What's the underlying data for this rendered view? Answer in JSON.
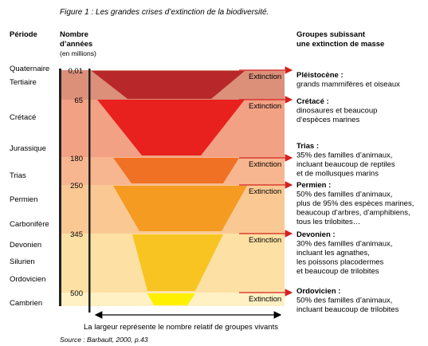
{
  "title": "Figure 1 : Les grandes crises d’extinction de la biodiversité.",
  "headers": {
    "period": "Période",
    "years": [
      "Nombre",
      "d’années"
    ],
    "years_unit": "(en millions)",
    "groups": [
      "Groupes subissant",
      "une extinction de masse"
    ]
  },
  "periods": [
    "Quaternaire",
    "Tertiaire",
    "Crétacé",
    "Jurassique",
    "Trias",
    "Permien",
    "Carbonifère",
    "Devonien",
    "Silurien",
    "Ordovicien",
    "Cambrien"
  ],
  "crises": [
    {
      "years": "0,01",
      "extinction": "Extinction",
      "group": "Pléistocène :",
      "description": [
        "grands mammifères et oiseaux"
      ]
    },
    {
      "years": "65",
      "extinction": "Extinction",
      "group": "Crétacé :",
      "description": [
        "dinosaures et beaucoup",
        "d’espèces marines"
      ]
    },
    {
      "years": "180",
      "extinction": "Extinction",
      "group": "Trias :",
      "description": [
        "35% des familles d’animaux,",
        "incluant beaucoup de reptiles",
        "et de mollusques marins"
      ]
    },
    {
      "years": "250",
      "extinction": "Extinction",
      "group": "Permien :",
      "description": [
        "50% des familles d’animaux,",
        "plus de 95% des espèces marines,",
        "beaucoup d’arbres, d’amphibiens,",
        "tous les trilobites…"
      ]
    },
    {
      "years": "345",
      "extinction": "Extinction",
      "group": "Devonien :",
      "description": [
        "30% des familles d’animaux,",
        "incluant les agnathes,",
        "les poissons placodermes",
        "et beaucoup de trilobites"
      ]
    },
    {
      "years": "500",
      "extinction": "Extinction",
      "group": "Ordovicien :",
      "description": [
        "50% des familles d’animaux,",
        "incluant beaucoup de trilobites"
      ]
    }
  ],
  "caption": "La largeur représente le nombre relatif de groupes vivants",
  "source": "Source : Barbault, 2000, p.43"
}
